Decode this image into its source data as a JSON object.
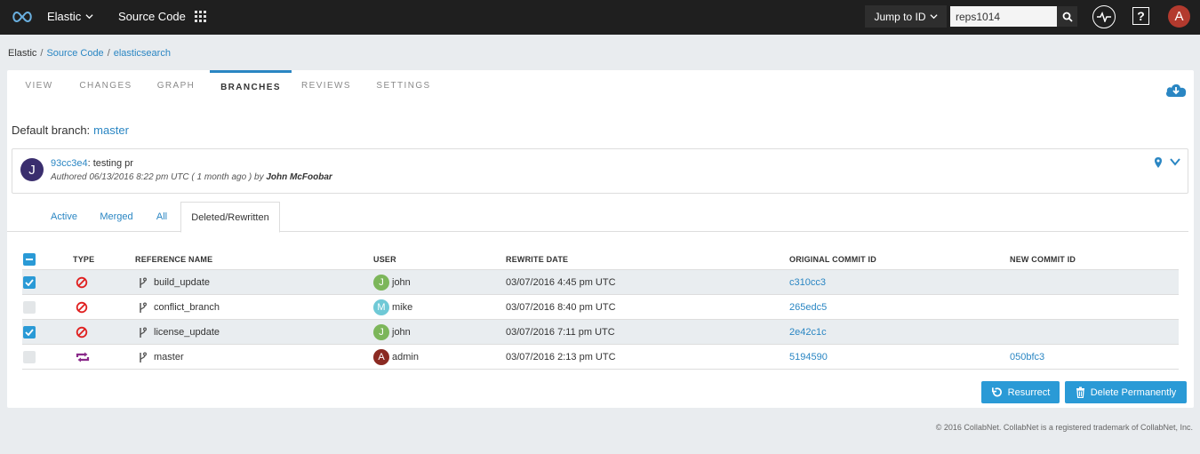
{
  "topbar": {
    "brand": "Elastic",
    "project": "Source Code",
    "jump_label": "Jump to ID",
    "search_value": "reps1014",
    "help_label": "?",
    "user_initial": "A"
  },
  "breadcrumb": {
    "root": "Elastic",
    "source_code": "Source Code",
    "repo": "elasticsearch",
    "sep": "/"
  },
  "tabs": [
    "VIEW",
    "CHANGES",
    "GRAPH",
    "BRANCHES",
    "REVIEWS",
    "SETTINGS"
  ],
  "active_tab": "BRANCHES",
  "default_branch": {
    "label": "Default branch:",
    "value": "master"
  },
  "commit": {
    "avatar": "J",
    "sha": "93cc3e4",
    "message": ": testing pr",
    "authored": "Authored 06/13/2016 8:22 pm UTC ( 1 month ago ) by ",
    "author": "John McFoobar"
  },
  "subtabs": [
    "Active",
    "Merged",
    "All",
    "Deleted/Rewritten"
  ],
  "active_subtab": "Deleted/Rewritten",
  "table": {
    "headers": {
      "type": "TYPE",
      "reference_name": "REFERENCE NAME",
      "user": "USER",
      "rewrite_date": "REWRITE DATE",
      "original_commit": "ORIGINAL COMMIT ID",
      "new_commit": "NEW COMMIT ID"
    },
    "rows": [
      {
        "checked": true,
        "type": "deleted",
        "name": "build_update",
        "user_initial": "J",
        "user": "john",
        "user_color": "#7cb65a",
        "date": "03/07/2016 4:45 pm UTC",
        "original": "c310cc3",
        "new": ""
      },
      {
        "checked": false,
        "type": "deleted",
        "name": "conflict_branch",
        "user_initial": "M",
        "user": "mike",
        "user_color": "#6fc9d6",
        "date": "03/07/2016 8:40 pm UTC",
        "original": "265edc5",
        "new": ""
      },
      {
        "checked": true,
        "type": "deleted",
        "name": "license_update",
        "user_initial": "J",
        "user": "john",
        "user_color": "#7cb65a",
        "date": "03/07/2016 7:11 pm UTC",
        "original": "2e42c1c",
        "new": ""
      },
      {
        "checked": false,
        "type": "rewritten",
        "name": "master",
        "user_initial": "A",
        "user": "admin",
        "user_color": "#8b2a22",
        "date": "03/07/2016 2:13 pm UTC",
        "original": "5194590",
        "new": "050bfc3"
      }
    ]
  },
  "buttons": {
    "resurrect": "Resurrect",
    "delete_permanently": "Delete Permanently"
  },
  "footer": "© 2016 CollabNet. CollabNet is a registered trademark of CollabNet, Inc.",
  "colors": {
    "accent": "#2a86c3",
    "button": "#2a9ad6",
    "deleted_icon": "#e02020",
    "rewritten_icon": "#8a2a8a"
  }
}
